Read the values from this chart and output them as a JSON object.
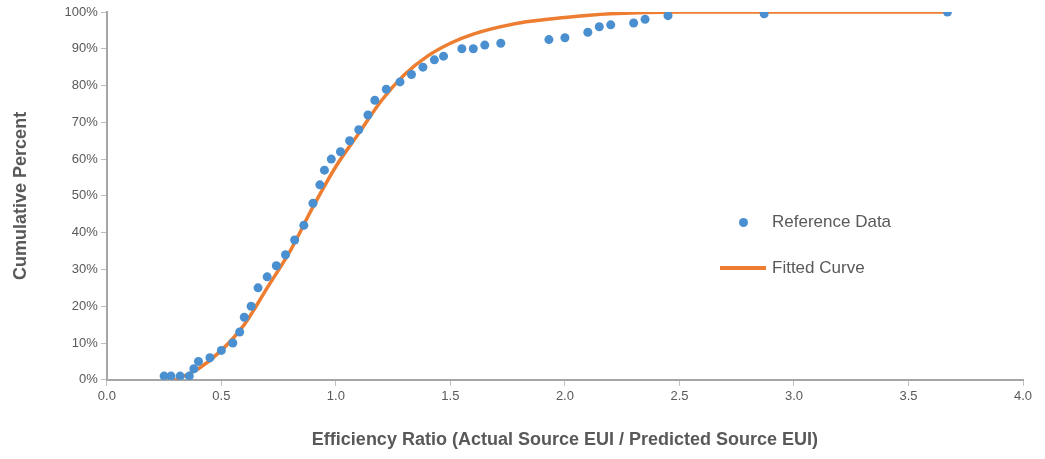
{
  "chart_data": {
    "type": "scatter",
    "xlabel": "Efficiency Ratio (Actual Source EUI / Predicted Source EUI)",
    "ylabel": "Cumulative Percent",
    "xlim": [
      0,
      4
    ],
    "xticks": [
      {
        "value": 0,
        "label": "0.0"
      },
      {
        "value": 0.5,
        "label": "0.5"
      },
      {
        "value": 1,
        "label": "1.0"
      },
      {
        "value": 1.5,
        "label": "1.5"
      },
      {
        "value": 2,
        "label": "2.0"
      },
      {
        "value": 2.5,
        "label": "2.5"
      },
      {
        "value": 3,
        "label": "3.0"
      },
      {
        "value": 3.5,
        "label": "3.5"
      },
      {
        "value": 4,
        "label": "4.0"
      }
    ],
    "ylim": [
      0,
      100
    ],
    "yticks": [
      {
        "value": 0,
        "label": "0%"
      },
      {
        "value": 10,
        "label": "10%"
      },
      {
        "value": 20,
        "label": "20%"
      },
      {
        "value": 30,
        "label": "30%"
      },
      {
        "value": 40,
        "label": "40%"
      },
      {
        "value": 50,
        "label": "50%"
      },
      {
        "value": 60,
        "label": "60%"
      },
      {
        "value": 70,
        "label": "70%"
      },
      {
        "value": 80,
        "label": "80%"
      },
      {
        "value": 90,
        "label": "90%"
      },
      {
        "value": 100,
        "label": "100%"
      }
    ],
    "grid": false,
    "legend": "right",
    "marker": "circle",
    "series": [
      {
        "name": "Fitted Curve",
        "type": "line",
        "color": "#ed7d31",
        "line_style": "solid",
        "marker": "none",
        "x": [
          0.3,
          0.4,
          0.5,
          0.6,
          0.7,
          0.8,
          0.9,
          1.0,
          1.1,
          1.2,
          1.3,
          1.4,
          1.5,
          1.6,
          1.8,
          2.0,
          2.2,
          2.5,
          3.65
        ],
        "values": [
          0,
          3,
          8,
          15,
          25,
          35,
          47,
          58,
          67,
          76,
          83,
          88,
          91.5,
          94,
          97,
          98.5,
          99.5,
          100,
          100
        ]
      },
      {
        "name": "Reference Data",
        "color": "#4a8fd0",
        "x": [
          0.25,
          0.28,
          0.32,
          0.36,
          0.38,
          0.4,
          0.45,
          0.5,
          0.55,
          0.58,
          0.6,
          0.63,
          0.66,
          0.7,
          0.74,
          0.78,
          0.82,
          0.86,
          0.9,
          0.93,
          0.95,
          0.98,
          1.02,
          1.06,
          1.1,
          1.14,
          1.17,
          1.22,
          1.28,
          1.33,
          1.38,
          1.43,
          1.47,
          1.55,
          1.6,
          1.65,
          1.72,
          1.93,
          2.0,
          2.1,
          2.15,
          2.2,
          2.3,
          2.35,
          2.45,
          2.87,
          3.67
        ],
        "values": [
          1,
          1,
          1,
          1,
          3,
          5,
          6,
          8,
          10,
          13,
          17,
          20,
          25,
          28,
          31,
          34,
          38,
          42,
          48,
          53,
          57,
          60,
          62,
          65,
          68,
          72,
          76,
          79,
          81,
          83,
          85,
          87,
          88,
          90,
          90,
          91,
          91.5,
          92.5,
          93,
          94.5,
          96,
          96.5,
          97,
          98,
          99,
          99.5,
          100
        ]
      }
    ]
  }
}
